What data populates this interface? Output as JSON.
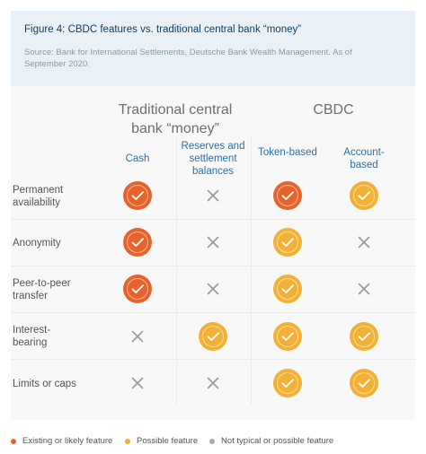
{
  "header": {
    "title": "Figure 4: CBDC features vs. traditional central bank “money”",
    "source": "Source: Bank for International Settlements, Deutsche Bank Wealth Management. As of September 2020."
  },
  "groups": {
    "traditional": "Traditional central bank “money”",
    "cbdc": "CBDC"
  },
  "columns": [
    "Cash",
    "Reserves and settlement balances",
    "Token-based",
    "Account-based"
  ],
  "rows": [
    {
      "label": "Permanent availability",
      "cells": [
        "existing",
        "none",
        "existing",
        "possible"
      ]
    },
    {
      "label": "Anonymity",
      "cells": [
        "existing",
        "none",
        "possible",
        "none"
      ]
    },
    {
      "label": "Peer-to-peer transfer",
      "cells": [
        "existing",
        "none",
        "possible",
        "none"
      ]
    },
    {
      "label": "Interest-bearing",
      "cells": [
        "none",
        "possible",
        "possible",
        "possible"
      ]
    },
    {
      "label": "Limits or caps",
      "cells": [
        "none",
        "none",
        "possible",
        "possible"
      ]
    }
  ],
  "legend": {
    "existing": "Existing or likely feature",
    "possible": "Possible feature",
    "none": "Not typical or possible feature"
  },
  "colors": {
    "existing": "#e8632b",
    "possible": "#f2b134",
    "none": "#a8a8a8"
  },
  "icons": {
    "existing": "check-icon",
    "possible": "check-icon",
    "none": "cross-icon"
  }
}
